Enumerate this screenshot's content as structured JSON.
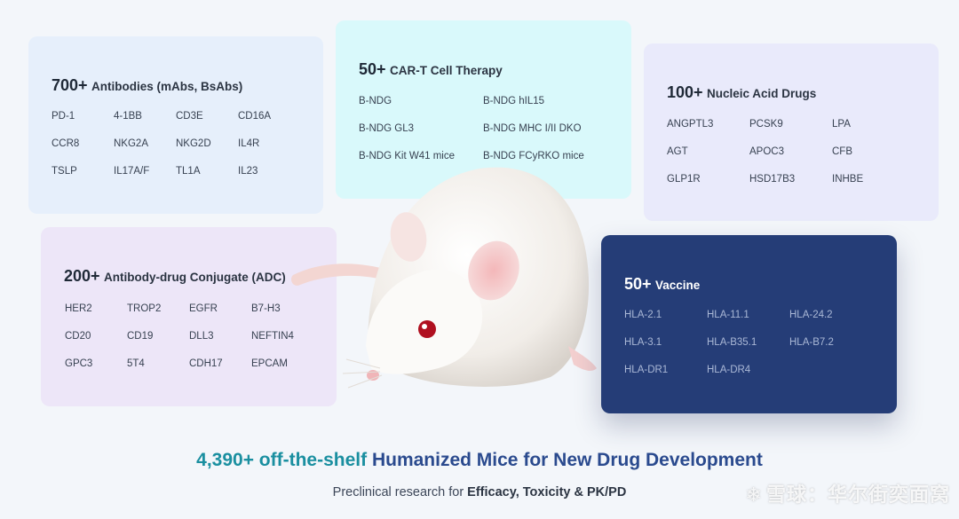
{
  "antibodies": {
    "count": "700+",
    "label": "Antibodies (mAbs, BsAbs)",
    "items": [
      "PD-1",
      "4-1BB",
      "CD3E",
      "CD16A",
      "CCR8",
      "NKG2A",
      "NKG2D",
      "IL4R",
      "TSLP",
      "IL17A/F",
      "TL1A",
      "IL23"
    ]
  },
  "cart": {
    "count": "50+",
    "label": "CAR-T Cell Therapy",
    "items": [
      "B-NDG",
      "B-NDG hIL15",
      "B-NDG GL3",
      "B-NDG MHC I/II DKO",
      "B-NDG Kit W41 mice",
      "B-NDG FCyRKO mice"
    ]
  },
  "nucleic": {
    "count": "100+",
    "label": "Nucleic Acid Drugs",
    "items": [
      "ANGPTL3",
      "PCSK9",
      "LPA",
      "AGT",
      "APOC3",
      "CFB",
      "GLP1R",
      "HSD17B3",
      "INHBE"
    ]
  },
  "adc": {
    "count": "200+",
    "label": "Antibody-drug Conjugate (ADC)",
    "items": [
      "HER2",
      "TROP2",
      "EGFR",
      "B7-H3",
      "CD20",
      "CD19",
      "DLL3",
      "NEFTIN4",
      "GPC3",
      "5T4",
      "CDH17",
      "EPCAM"
    ]
  },
  "vaccine": {
    "count": "50+",
    "label": "Vaccine",
    "items": [
      "HLA-2.1",
      "HLA-11.1",
      "HLA-24.2",
      "HLA-3.1",
      "HLA-B35.1",
      "HLA-B7.2",
      "HLA-DR1",
      "HLA-DR4"
    ]
  },
  "headline": {
    "part1": "4,390+ off-the-shelf ",
    "part2": "Humanized Mice for New Drug Development"
  },
  "subline": {
    "prefix": "Preclinical research for ",
    "emphasis": "Efficacy, Toxicity & PK/PD"
  },
  "watermark": {
    "icon": "snowball-logo-icon",
    "text": "雪球：华尔街奕面窝"
  },
  "colors": {
    "headline_teal": "#1a8fa0",
    "headline_navy": "#2a4a8e",
    "vaccine_bg": "#253d77"
  }
}
